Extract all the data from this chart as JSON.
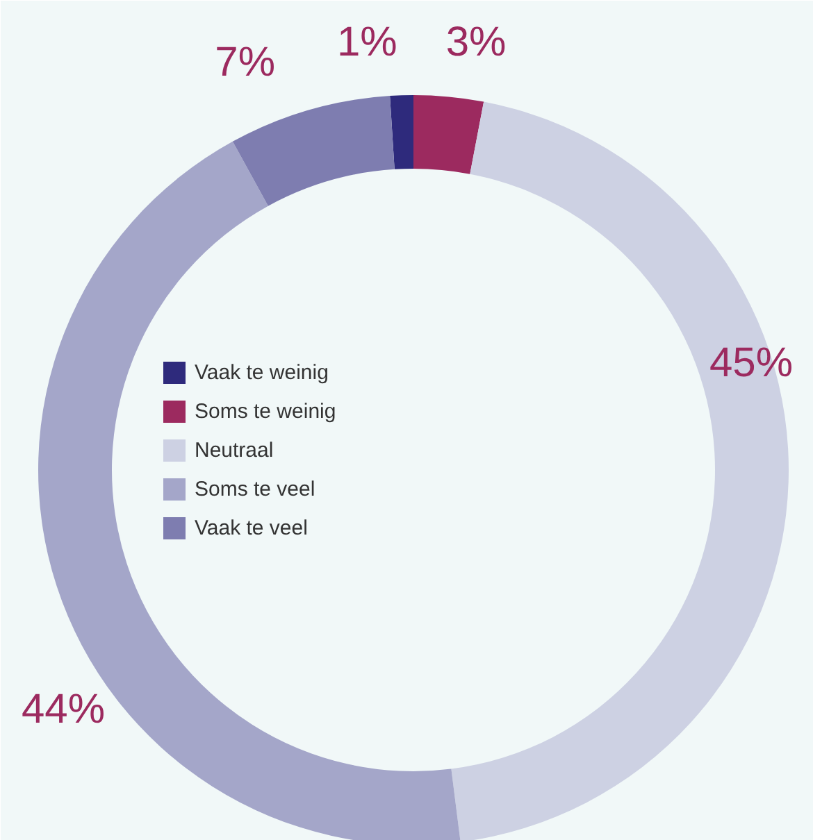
{
  "chart_data": {
    "type": "donut",
    "categories": [
      "Vaak te weinig",
      "Soms te weinig",
      "Neutraal",
      "Soms te veel",
      "Vaak te veel"
    ],
    "values": [
      1,
      3,
      45,
      44,
      7
    ],
    "colors": [
      "#2e2a7c",
      "#9c2a5f",
      "#cdd1e3",
      "#a4a6c9",
      "#7e7db0"
    ],
    "value_labels": [
      "1%",
      "3%",
      "45%",
      "44%",
      "7%"
    ],
    "legend": "left"
  }
}
